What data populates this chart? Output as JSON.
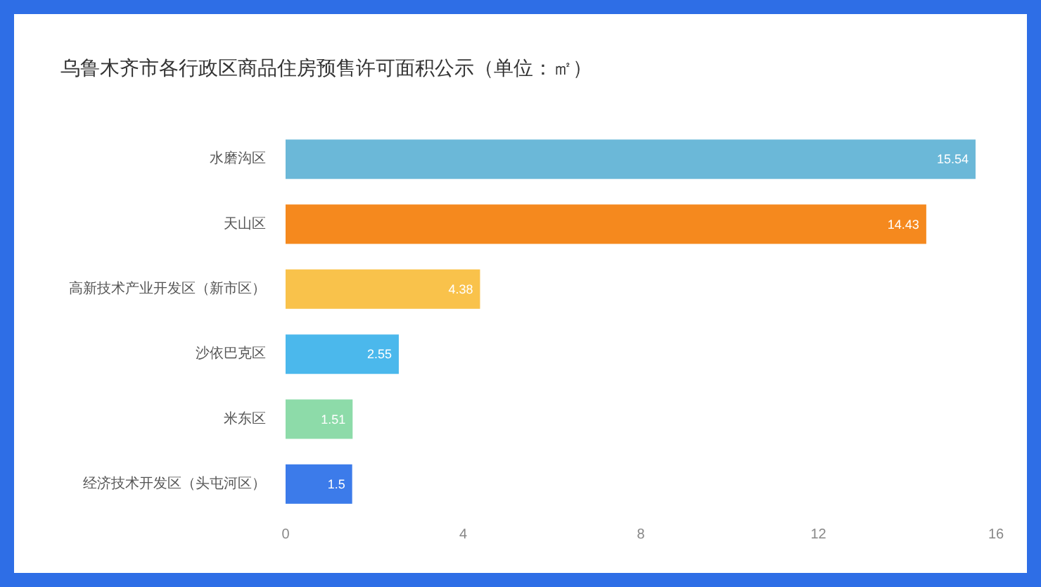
{
  "chart_data": {
    "type": "bar",
    "orientation": "horizontal",
    "title": "乌鲁木齐市各行政区商品住房预售许可面积公示（单位：㎡）",
    "categories": [
      "水磨沟区",
      "天山区",
      "高新技术产业开发区（新市区）",
      "沙依巴克区",
      "米东区",
      "经济技术开发区（头屯河区）"
    ],
    "values": [
      15.54,
      14.43,
      4.38,
      2.55,
      1.51,
      1.5
    ],
    "colors": [
      "#6bb8d8",
      "#f5891e",
      "#f9c24b",
      "#4bb8ec",
      "#8ddba9",
      "#3c7bea"
    ],
    "xlim": [
      0,
      16
    ],
    "xticks": [
      0,
      4,
      8,
      12,
      16
    ],
    "data_labels": true,
    "grid": false
  }
}
